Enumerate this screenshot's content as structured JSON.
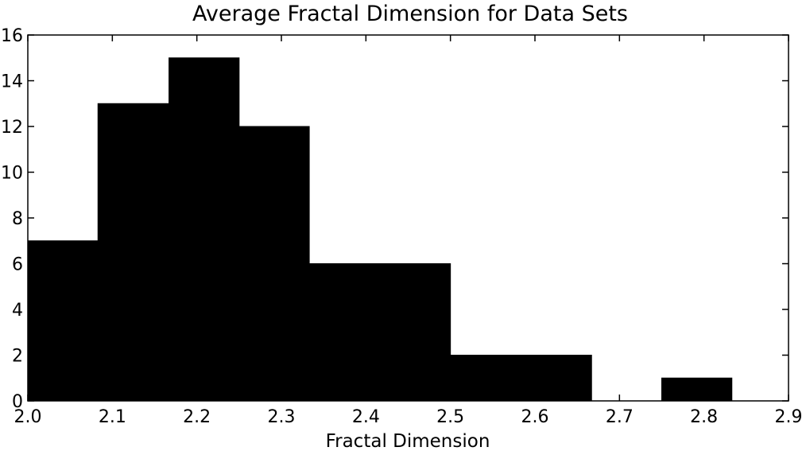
{
  "chart_data": {
    "type": "bar",
    "title": "Average Fractal Dimension for Data Sets",
    "xlabel": "Fractal Dimension",
    "ylabel": "",
    "xlim": [
      2.0,
      2.9
    ],
    "ylim": [
      0,
      16
    ],
    "x_ticks": [
      "2.0",
      "2.1",
      "2.2",
      "2.3",
      "2.4",
      "2.5",
      "2.6",
      "2.7",
      "2.8",
      "2.9"
    ],
    "y_ticks": [
      "0",
      "2",
      "4",
      "6",
      "8",
      "10",
      "12",
      "14",
      "16"
    ],
    "bin_edges": [
      2.0,
      2.083,
      2.167,
      2.25,
      2.333,
      2.417,
      2.5,
      2.583,
      2.667,
      2.75,
      2.833
    ],
    "values": [
      7,
      13,
      15,
      12,
      6,
      6,
      2,
      2,
      0,
      1
    ],
    "bar_color": "#000000",
    "grid": false,
    "legend": "none"
  }
}
